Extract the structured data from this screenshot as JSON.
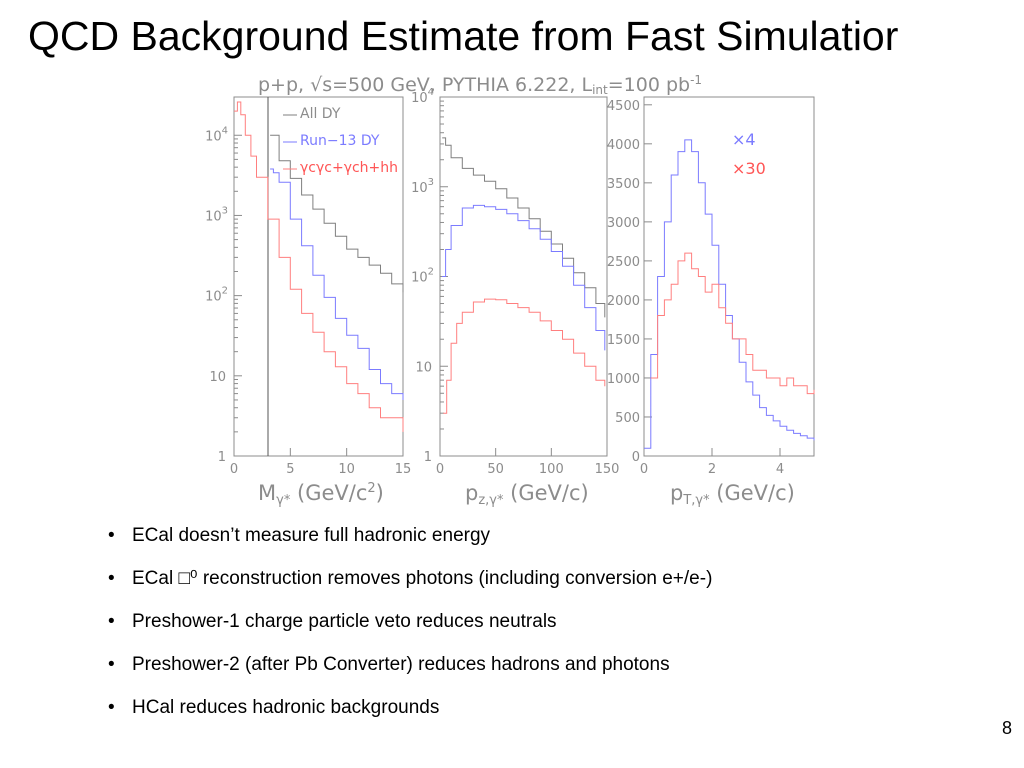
{
  "slide": {
    "title": "QCD Background Estimate from Fast Simulatior",
    "bullets": [
      "ECal doesn’t measure full hadronic energy",
      "ECal □⁰ reconstruction removes photons (including conversion e+/e-)",
      "Preshower-1 charge particle veto reduces neutrals",
      "Preshower-2 (after Pb Converter) reduces hadrons and photons",
      "HCal reduces hadronic backgrounds"
    ],
    "page_number": "8"
  },
  "figure": {
    "header": "p+p, √s=500 GeV, PYTHIA 6.222, L",
    "header_sub": "int",
    "header_tail": "=100 pb",
    "header_sup": "-1",
    "colors": {
      "all_dy": "#7f7f7f",
      "run13": "#7b7bff",
      "qcd": "#ff7f7f",
      "axis": "#8c8c8c"
    }
  },
  "chart_data": [
    {
      "type": "line",
      "scale": "log",
      "xlabel": "M",
      "xlabel_sub": "γ*",
      "xlabel_tail": " (GeV/c",
      "xlabel_sup": "2",
      "xlabel_end": ")",
      "xlim": [
        0,
        15
      ],
      "ylim": [
        1,
        30000
      ],
      "x_ticks": [
        "0",
        "5",
        "10",
        "15"
      ],
      "y_ticks": [
        {
          "base": "1",
          "exp": ""
        },
        {
          "base": "10",
          "exp": ""
        },
        {
          "base": "10",
          "exp": "2"
        },
        {
          "base": "10",
          "exp": "3"
        },
        {
          "base": "10",
          "exp": "4"
        }
      ],
      "legend": [
        "All DY",
        "Run−13 DY",
        "γcγc+γch+hh"
      ],
      "legend_placement": "top-right",
      "series": [
        {
          "name": "All DY",
          "x": [
            3.2,
            4,
            5,
            6,
            7,
            8,
            9,
            10,
            11,
            12,
            13,
            14,
            15
          ],
          "values": [
            10000,
            4800,
            2900,
            1800,
            1200,
            800,
            550,
            380,
            300,
            240,
            190,
            140,
            110
          ]
        },
        {
          "name": "Run−13 DY",
          "x": [
            3.2,
            3.5,
            4,
            5,
            6,
            7,
            8,
            9,
            10,
            11,
            12,
            13,
            14,
            15
          ],
          "values": [
            3800,
            3400,
            2600,
            900,
            420,
            180,
            95,
            52,
            32,
            22,
            12,
            8,
            6,
            5
          ]
        },
        {
          "name": "γcγc+γch+hh",
          "x": [
            0,
            0.3,
            0.6,
            1,
            1.5,
            2,
            3,
            4,
            5,
            6,
            7,
            8,
            9,
            10,
            11,
            12,
            13,
            14,
            15
          ],
          "values": [
            20000,
            26000,
            18000,
            10000,
            5500,
            3000,
            900,
            300,
            120,
            60,
            35,
            20,
            13,
            8,
            6,
            4,
            3,
            3,
            2
          ]
        }
      ]
    },
    {
      "type": "line",
      "scale": "log",
      "xlabel": "p",
      "xlabel_sub": "z,γ*",
      "xlabel_tail": " (GeV/c)",
      "xlim": [
        0,
        150
      ],
      "ylim": [
        1,
        10000
      ],
      "x_ticks": [
        "0",
        "50",
        "100",
        "150"
      ],
      "y_ticks": [
        {
          "base": "1",
          "exp": ""
        },
        {
          "base": "10",
          "exp": ""
        },
        {
          "base": "10",
          "exp": "2"
        },
        {
          "base": "10",
          "exp": "3"
        },
        {
          "base": "10",
          "exp": "4"
        }
      ],
      "series": [
        {
          "name": "All DY",
          "x": [
            2,
            5,
            10,
            20,
            30,
            40,
            50,
            60,
            70,
            80,
            90,
            100,
            110,
            120,
            130,
            140,
            148
          ],
          "values": [
            3500,
            2900,
            2100,
            1600,
            1350,
            1150,
            950,
            750,
            580,
            440,
            320,
            230,
            160,
            110,
            75,
            50,
            35
          ]
        },
        {
          "name": "Run−13 DY",
          "x": [
            2,
            5,
            10,
            20,
            30,
            40,
            50,
            60,
            70,
            80,
            90,
            100,
            110,
            120,
            130,
            140,
            148
          ],
          "values": [
            100,
            200,
            370,
            580,
            620,
            600,
            560,
            500,
            420,
            340,
            260,
            190,
            130,
            80,
            45,
            25,
            15
          ]
        },
        {
          "name": "γcγc+γch+hh",
          "x": [
            3,
            6,
            10,
            15,
            20,
            30,
            40,
            50,
            60,
            70,
            80,
            90,
            100,
            110,
            120,
            130,
            140,
            148
          ],
          "values": [
            3,
            7,
            18,
            30,
            40,
            52,
            56,
            55,
            50,
            45,
            40,
            32,
            25,
            20,
            14,
            10,
            7,
            6
          ]
        }
      ]
    },
    {
      "type": "line",
      "scale": "linear",
      "xlabel": "p",
      "xlabel_sub": "T,γ*",
      "xlabel_tail": " (GeV/c)",
      "xlim": [
        0,
        5
      ],
      "ylim": [
        0,
        4600
      ],
      "x_ticks": [
        "0",
        "2",
        "4"
      ],
      "y_ticks": [
        "0",
        "500",
        "1000",
        "1500",
        "2000",
        "2500",
        "3000",
        "3500",
        "4000",
        "4500"
      ],
      "annotations": [
        "×4",
        "×30"
      ],
      "series": [
        {
          "name": "Run−13 DY ×4",
          "x": [
            0,
            0.2,
            0.4,
            0.6,
            0.8,
            1,
            1.2,
            1.4,
            1.6,
            1.8,
            2,
            2.2,
            2.4,
            2.6,
            2.8,
            3,
            3.2,
            3.4,
            3.6,
            3.8,
            4,
            4.2,
            4.4,
            4.6,
            4.8,
            5
          ],
          "values": [
            100,
            1300,
            2300,
            3000,
            3600,
            3900,
            4050,
            3900,
            3500,
            3100,
            2700,
            2200,
            1800,
            1500,
            1200,
            950,
            780,
            620,
            520,
            450,
            380,
            330,
            290,
            260,
            230,
            200
          ]
        },
        {
          "name": "γcγc+γch+hh ×30",
          "x": [
            0.2,
            0.4,
            0.6,
            0.8,
            1,
            1.2,
            1.4,
            1.6,
            1.8,
            2,
            2.2,
            2.4,
            2.6,
            2.8,
            3,
            3.2,
            3.4,
            3.6,
            3.8,
            4,
            4.2,
            4.4,
            4.6,
            4.8,
            5
          ],
          "values": [
            1000,
            1800,
            2000,
            2200,
            2500,
            2600,
            2400,
            2300,
            2100,
            2200,
            1900,
            1700,
            1500,
            1500,
            1300,
            1100,
            1100,
            1000,
            1000,
            900,
            1000,
            900,
            900,
            800,
            850
          ]
        }
      ]
    }
  ]
}
